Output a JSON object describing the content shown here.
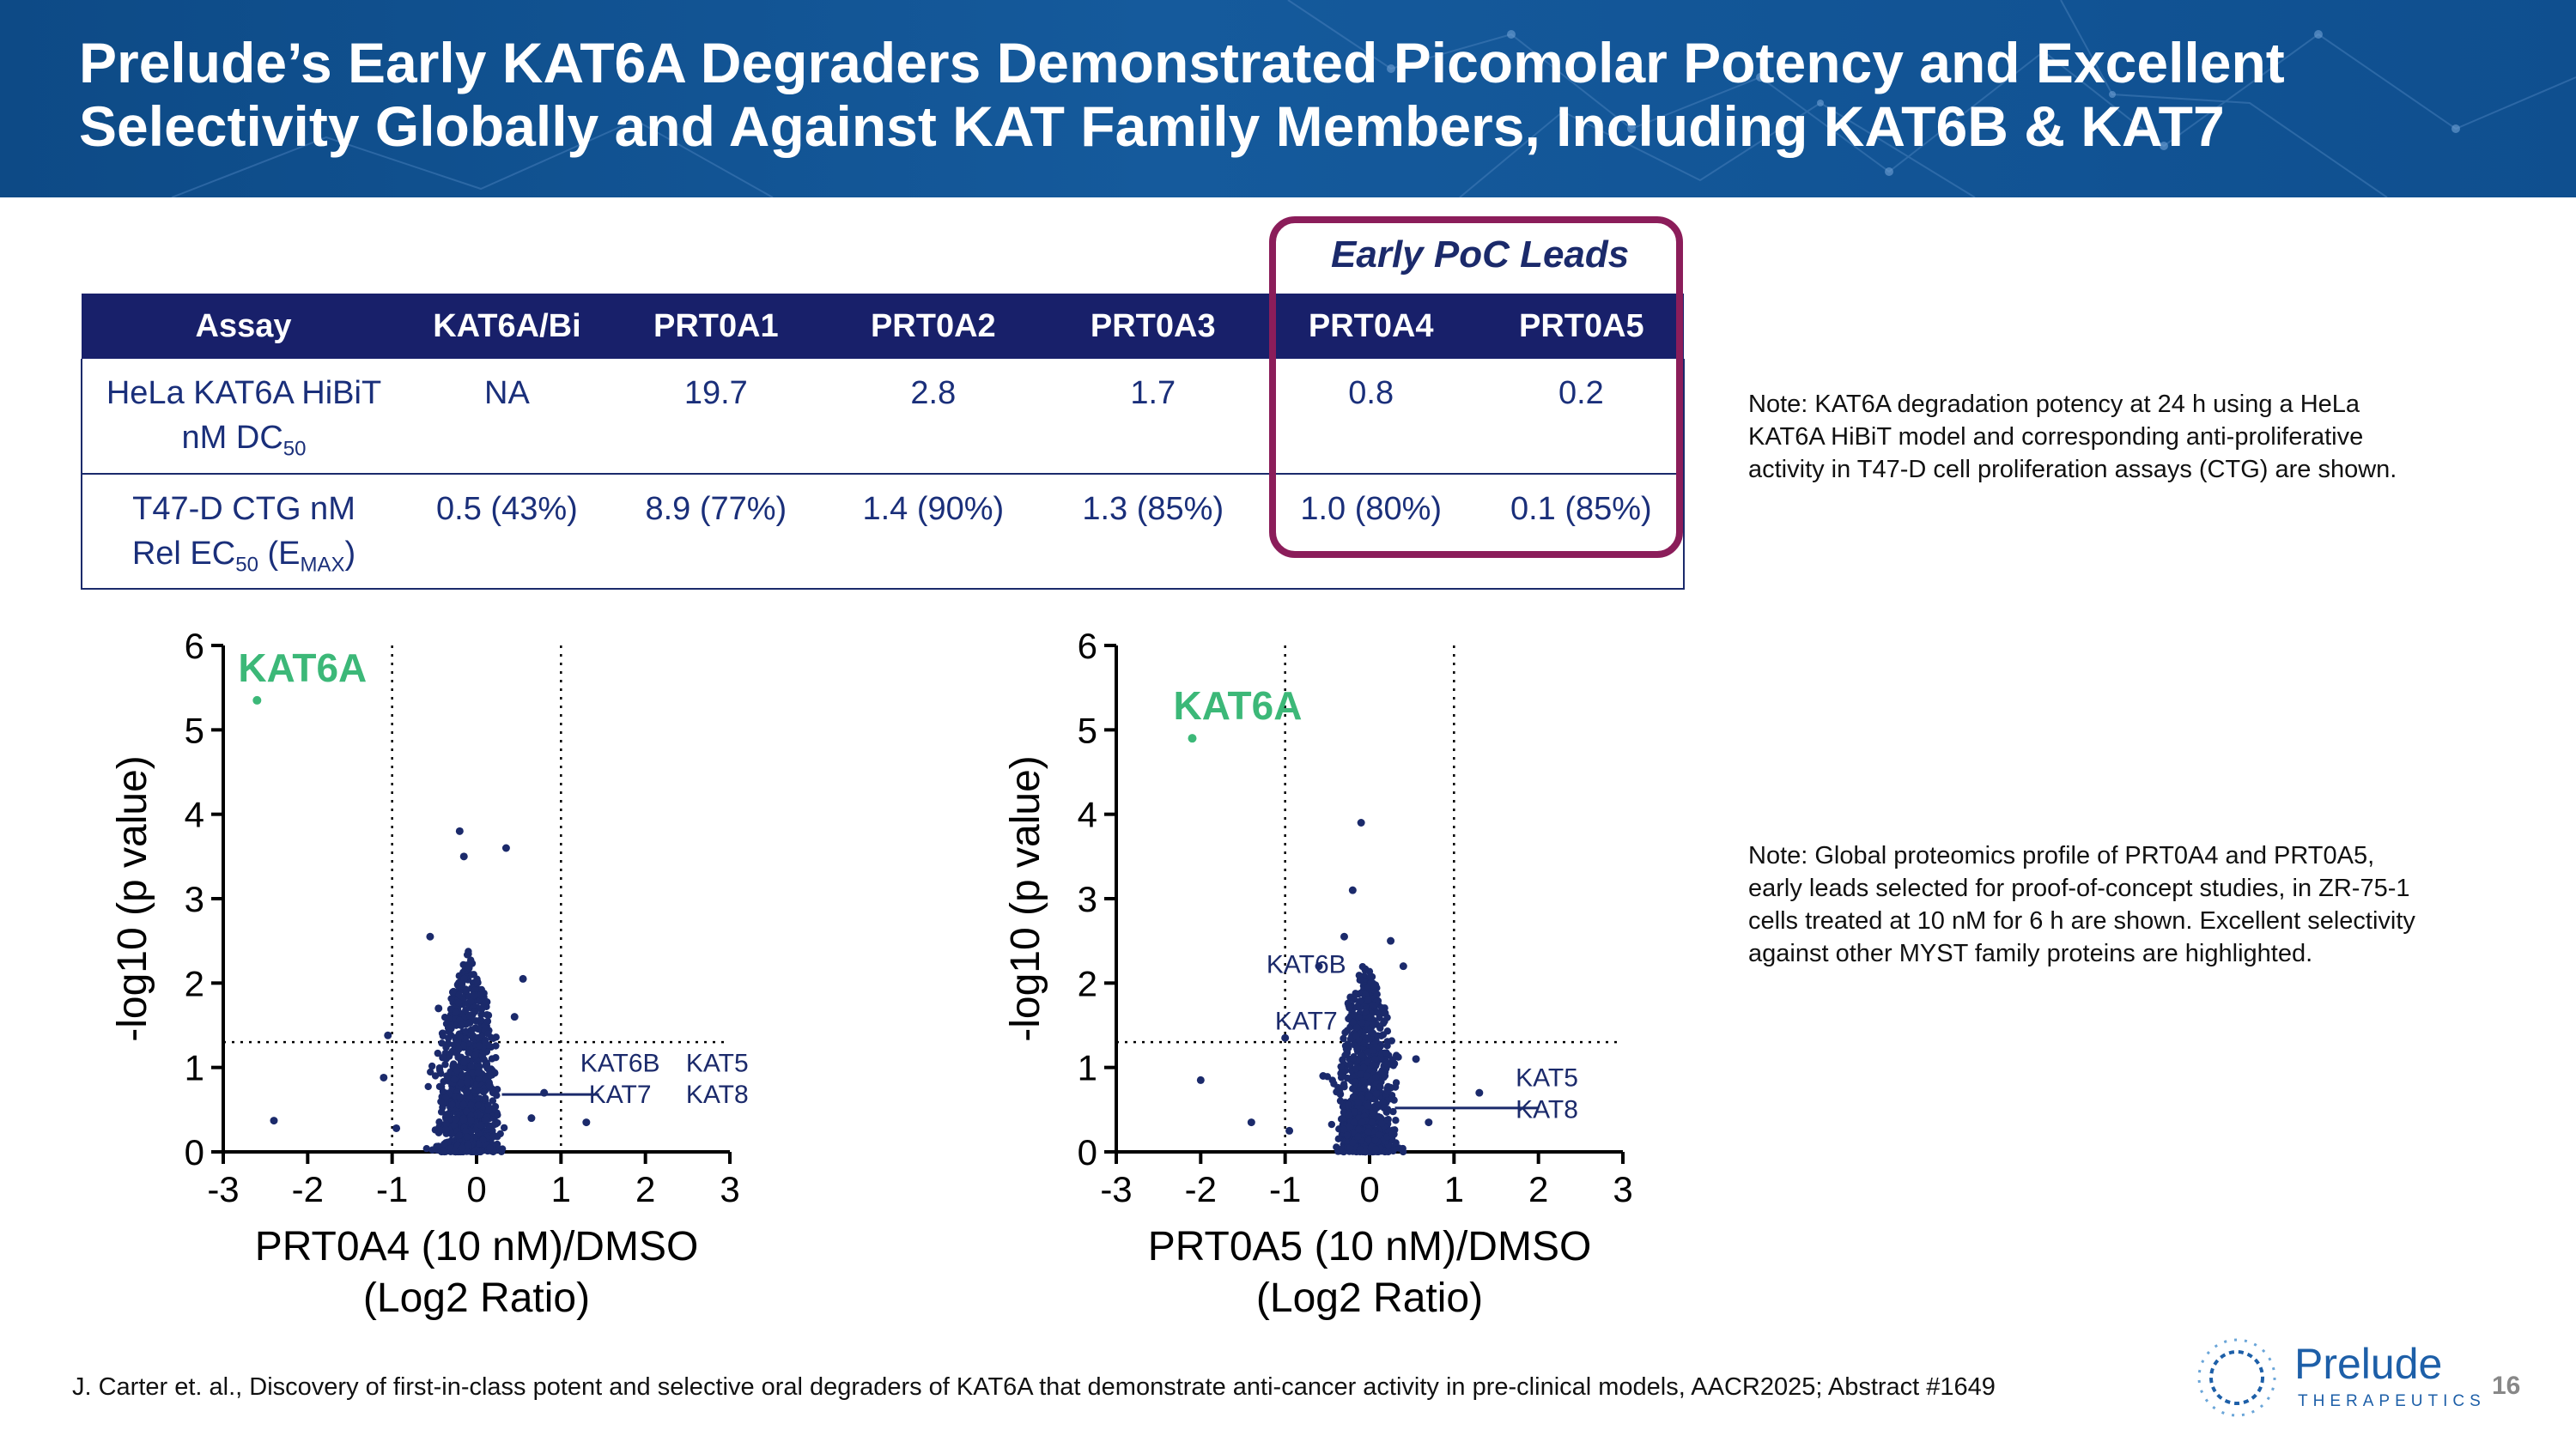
{
  "title": {
    "line1": "Prelude’s Early KAT6A Degraders Demonstrated Picomolar Potency and Excellent",
    "line2": "Selectivity Globally and Against KAT Family Members, Including KAT6B & KAT7"
  },
  "poc_label": "Early PoC Leads",
  "table": {
    "headers": [
      "Assay",
      "KAT6A/Bi",
      "PRT0A1",
      "PRT0A2",
      "PRT0A3",
      "PRT0A4",
      "PRT0A5"
    ],
    "row1": {
      "assay_line1": "HeLa KAT6A HiBiT",
      "assay_line2": "nM DC",
      "assay_sub": "50",
      "values": [
        "NA",
        "19.7",
        "2.8",
        "1.7",
        "0.8",
        "0.2"
      ]
    },
    "row2": {
      "assay_line1": "T47-D CTG nM",
      "assay_line2": "Rel EC",
      "assay_sub": "50",
      "assay_paren_open": " (E",
      "assay_sub2": "MAX",
      "assay_paren_close": ")",
      "values": [
        "0.5 (43%)",
        "8.9 (77%)",
        "1.4 (90%)",
        "1.3 (85%)",
        "1.0 (80%)",
        "0.1 (85%)"
      ]
    }
  },
  "notes": {
    "note1": [
      "Note:  KAT6A degradation potency at 24 h using a HeLa",
      "KAT6A HiBiT model and corresponding anti-proliferative",
      "activity in T47-D cell proliferation assays (CTG) are shown."
    ],
    "note2": [
      "Note:  Global proteomics profile of PRT0A4 and PRT0A5,",
      "early leads selected for proof-of-concept studies, in ZR-75-1",
      "cells treated at 10 nM for 6 h are shown. Excellent selectivity",
      "against other MYST family proteins are highlighted."
    ]
  },
  "footer": "J. Carter et. al., Discovery of first-in-class potent and selective oral degraders of KAT6A that demonstrate anti-cancer activity in pre-clinical models, AACR2025; Abstract #1649",
  "page_number": "16",
  "logo": {
    "name": "Prelude",
    "sub": "THERAPEUTICS"
  },
  "colors": {
    "header_bg": "#0f4f8f",
    "point": "#1b2a6b",
    "kat6a": "#3cb878",
    "poc_border": "#8b1d5a"
  },
  "chart_data": [
    {
      "type": "scatter",
      "title": "",
      "xlabel": "PRT0A4 (10 nM)/DMSO",
      "xlabel2": "(Log2 Ratio)",
      "ylabel": "-log10 (p value)",
      "xlim": [
        -3,
        3
      ],
      "ylim": [
        0,
        6
      ],
      "xticks": [
        "-3",
        "-2",
        "-1",
        "0",
        "1",
        "2",
        "3"
      ],
      "yticks": [
        "0",
        "1",
        "2",
        "3",
        "4",
        "5",
        "6"
      ],
      "threshold_x": [
        -1,
        1
      ],
      "threshold_y": 1.3,
      "highlight": {
        "label": "KAT6A",
        "x": -2.6,
        "y": 5.35
      },
      "annotations": [
        {
          "text": "KAT6B",
          "x": 1.7,
          "y": 0.95
        },
        {
          "text": "KAT5",
          "x": 2.85,
          "y": 0.95
        },
        {
          "text": "KAT7",
          "x": 1.7,
          "y": 0.58
        },
        {
          "text": "KAT8",
          "x": 2.85,
          "y": 0.58
        }
      ],
      "callout": {
        "x_from": 0.3,
        "x_to": 1.45,
        "y": 0.68
      },
      "outliers": [
        [
          -2.4,
          0.37
        ],
        [
          -1.1,
          0.88
        ],
        [
          -1.05,
          1.38
        ],
        [
          -0.95,
          0.28
        ],
        [
          -0.55,
          2.55
        ],
        [
          -0.45,
          1.7
        ],
        [
          -0.2,
          3.8
        ],
        [
          -0.15,
          3.5
        ],
        [
          0.35,
          3.6
        ],
        [
          0.55,
          2.05
        ],
        [
          0.45,
          1.6
        ],
        [
          1.3,
          0.35
        ],
        [
          0.8,
          0.7
        ],
        [
          0.65,
          0.4
        ]
      ],
      "cloud": {
        "center": -0.1,
        "sd": 0.16,
        "n": 900,
        "seed": 11,
        "ymax": 2.4
      }
    },
    {
      "type": "scatter",
      "title": "",
      "xlabel": "PRT0A5 (10 nM)/DMSO",
      "xlabel2": "(Log2 Ratio)",
      "ylabel": "-log10 (p value)",
      "xlim": [
        -3,
        3
      ],
      "ylim": [
        0,
        6
      ],
      "xticks": [
        "-3",
        "-2",
        "-1",
        "0",
        "1",
        "2",
        "3"
      ],
      "yticks": [
        "0",
        "1",
        "2",
        "3",
        "4",
        "5",
        "6"
      ],
      "threshold_x": [
        -1,
        1
      ],
      "threshold_y": 1.3,
      "highlight": {
        "label": "KAT6A",
        "x": -2.1,
        "y": 4.9
      },
      "annotations": [
        {
          "text": "KAT6B",
          "x": -0.75,
          "y": 2.12
        },
        {
          "text": "KAT7",
          "x": -0.75,
          "y": 1.45
        },
        {
          "text": "KAT5",
          "x": 2.1,
          "y": 0.78
        },
        {
          "text": "KAT8",
          "x": 2.1,
          "y": 0.4
        }
      ],
      "callout": {
        "x_from": 0.3,
        "x_to": 2.0,
        "y": 0.52
      },
      "outliers": [
        [
          -2.0,
          0.85
        ],
        [
          -1.4,
          0.35
        ],
        [
          -0.95,
          0.25
        ],
        [
          -1.0,
          1.35
        ],
        [
          -0.6,
          2.2
        ],
        [
          -0.3,
          2.55
        ],
        [
          -0.2,
          3.1
        ],
        [
          -0.1,
          3.9
        ],
        [
          0.25,
          2.5
        ],
        [
          0.4,
          2.2
        ],
        [
          0.7,
          0.35
        ],
        [
          1.3,
          0.7
        ],
        [
          0.55,
          1.1
        ],
        [
          -0.55,
          0.9
        ]
      ],
      "cloud": {
        "center": -0.05,
        "sd": 0.16,
        "n": 900,
        "seed": 23,
        "ymax": 2.3
      }
    }
  ]
}
